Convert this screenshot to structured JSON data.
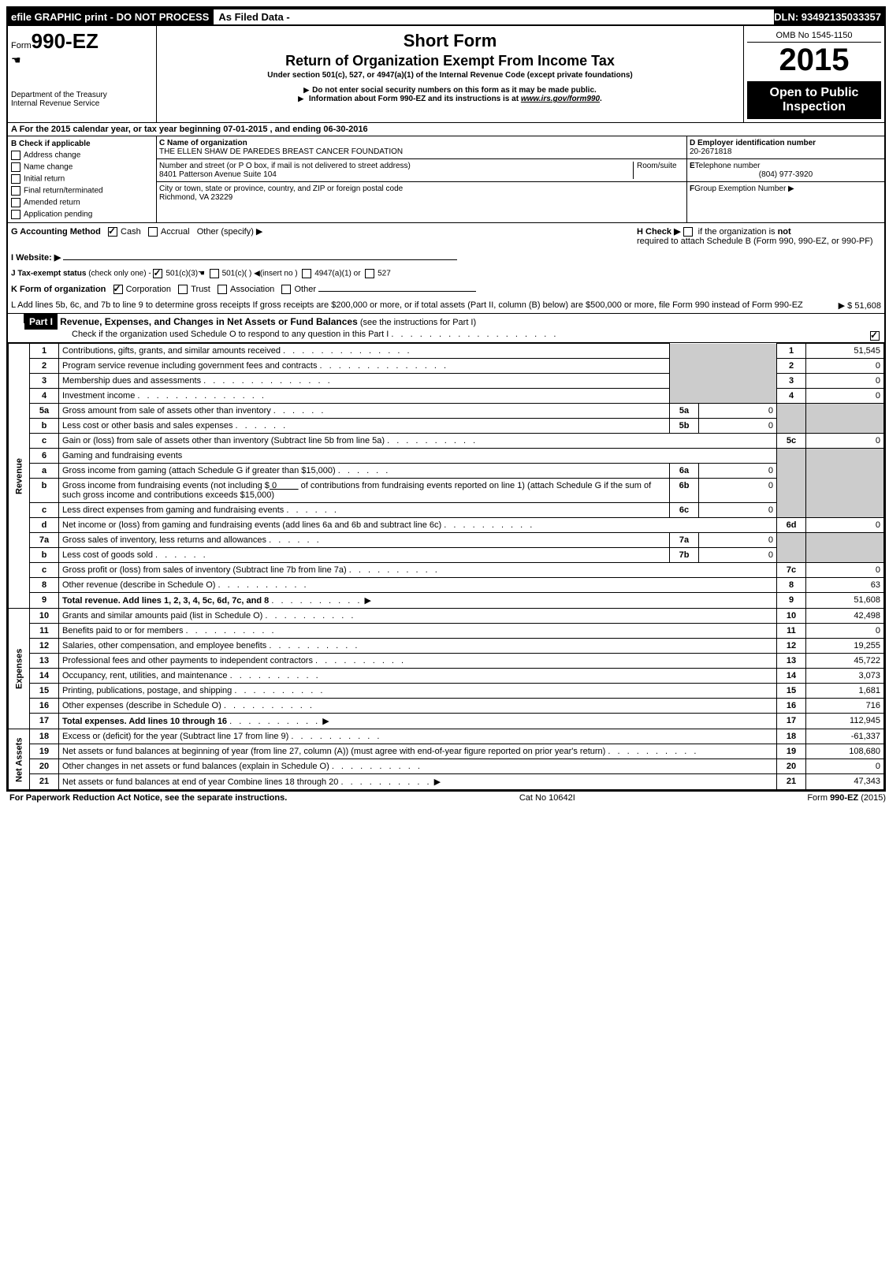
{
  "top": {
    "efile": "efile GRAPHIC print - DO NOT PROCESS",
    "asfiled": "As Filed Data -",
    "dln": "DLN: 93492135033357"
  },
  "header": {
    "form_prefix": "Form",
    "form_no": "990-EZ",
    "dept": "Department of the Treasury",
    "irs": "Internal Revenue Service",
    "short_form": "Short Form",
    "title": "Return of Organization Exempt From Income Tax",
    "under": "Under section 501(c), 527, or 4947(a)(1) of the Internal Revenue Code (except private foundations)",
    "note1": "Do not enter social security numbers on this form as it may be made public.",
    "note2_a": "Information about Form 990-EZ and its instructions is at ",
    "note2_link": "www.irs.gov/form990",
    "note2_b": ".",
    "omb": "OMB No 1545-1150",
    "year": "2015",
    "open": "Open to Public",
    "inspect": "Inspection"
  },
  "section_a": {
    "text": "A  For the 2015 calendar year, or tax year beginning 07-01-2015            , and ending 06-30-2016"
  },
  "section_b": {
    "label": "B  Check if applicable",
    "items": [
      "Address change",
      "Name change",
      "Initial return",
      "Final return/terminated",
      "Amended return",
      "Application pending"
    ]
  },
  "section_c": {
    "name_label": "C Name of organization",
    "name": "THE ELLEN SHAW DE PAREDES BREAST CANCER FOUNDATION",
    "addr_label": "Number and street (or P O box, if mail is not delivered to street address)",
    "room_label": "Room/suite",
    "addr": "8401 Patterson Avenue Suite 104",
    "city_label": "City or town, state or province, country, and ZIP or foreign postal code",
    "city": "Richmond, VA 23229"
  },
  "section_d": {
    "label": "D Employer identification number",
    "value": "20-2671818"
  },
  "section_e": {
    "label": "E",
    "text": "Telephone number",
    "value": "(804) 977-3920"
  },
  "section_f": {
    "label": "F",
    "text": "Group Exemption Number  ▶"
  },
  "section_g": {
    "label": "G Accounting Method",
    "cash": "Cash",
    "accrual": "Accrual",
    "other": "Other (specify) ▶"
  },
  "section_h": {
    "text": "H  Check ▶",
    "rest": "if the organization is",
    "not": "not",
    "rest2": "required to attach Schedule B (Form 990, 990-EZ, or 990-PF)"
  },
  "section_i": {
    "label": "I Website: ▶"
  },
  "section_j": {
    "label": "J Tax-exempt status",
    "small": "(check only one) -",
    "a": "501(c)(3)",
    "b": "501(c)( )",
    "c": "(insert no )",
    "d": "4947(a)(1) or",
    "e": "527"
  },
  "section_k": {
    "label": "K Form of organization",
    "corp": "Corporation",
    "trust": "Trust",
    "assoc": "Association",
    "other": "Other"
  },
  "section_l": {
    "text": "L Add lines 5b, 6c, and 7b to line 9 to determine gross receipts  If gross receipts are $200,000 or more, or if total assets (Part II, column (B) below) are $500,000 or more, file Form 990 instead of Form 990-EZ",
    "value": "▶ $ 51,608"
  },
  "part1": {
    "label": "Part I",
    "title": "Revenue, Expenses, and Changes in Net Assets or Fund Balances",
    "subtitle": "(see the instructions for Part I)",
    "check": "Check if the organization used Schedule O to respond to any question in this Part I"
  },
  "lines": [
    {
      "n": "1",
      "desc": "Contributions, gifts, grants, and similar amounts received",
      "rn": "1",
      "rv": "51,545"
    },
    {
      "n": "2",
      "desc": "Program service revenue including government fees and contracts",
      "rn": "2",
      "rv": "0"
    },
    {
      "n": "3",
      "desc": "Membership dues and assessments",
      "rn": "3",
      "rv": "0"
    },
    {
      "n": "4",
      "desc": "Investment income",
      "rn": "4",
      "rv": "0"
    }
  ],
  "line5a": {
    "n": "5a",
    "desc": "Gross amount from sale of assets other than inventory",
    "in": "5a",
    "iv": "0"
  },
  "line5b": {
    "n": "b",
    "desc": "Less  cost or other basis and sales expenses",
    "in": "5b",
    "iv": "0"
  },
  "line5c": {
    "n": "c",
    "desc": "Gain or (loss) from sale of assets other than inventory (Subtract line 5b from line 5a)",
    "rn": "5c",
    "rv": "0"
  },
  "line6": {
    "n": "6",
    "desc": "Gaming and fundraising events"
  },
  "line6a": {
    "n": "a",
    "desc": "Gross income from gaming (attach Schedule G if greater than $15,000)",
    "in": "6a",
    "iv": "0"
  },
  "line6b": {
    "n": "b",
    "desc1": "Gross income from fundraising events (not including $",
    "amt": "0",
    "desc2": " of contributions from fundraising events reported on line 1) (attach Schedule G if the sum of such gross income and contributions exceeds $15,000)",
    "in": "6b",
    "iv": "0"
  },
  "line6c": {
    "n": "c",
    "desc": "Less  direct expenses from gaming and fundraising events",
    "in": "6c",
    "iv": "0"
  },
  "line6d": {
    "n": "d",
    "desc": "Net income or (loss) from gaming and fundraising events (add lines 6a and 6b and subtract line 6c)",
    "rn": "6d",
    "rv": "0"
  },
  "line7a": {
    "n": "7a",
    "desc": "Gross sales of inventory, less returns and allowances",
    "in": "7a",
    "iv": "0"
  },
  "line7b": {
    "n": "b",
    "desc": "Less  cost of goods sold",
    "in": "7b",
    "iv": "0"
  },
  "line7c": {
    "n": "c",
    "desc": "Gross profit or (loss) from sales of inventory (Subtract line 7b from line 7a)",
    "rn": "7c",
    "rv": "0"
  },
  "line8": {
    "n": "8",
    "desc": "Other revenue (describe in Schedule O)",
    "rn": "8",
    "rv": "63"
  },
  "line9": {
    "n": "9",
    "desc": "Total revenue. Add lines 1, 2, 3, 4, 5c, 6d, 7c, and 8",
    "rn": "9",
    "rv": "51,608",
    "bold": true,
    "arrow": true
  },
  "expense_lines": [
    {
      "n": "10",
      "desc": "Grants and similar amounts paid (list in Schedule O)",
      "rn": "10",
      "rv": "42,498"
    },
    {
      "n": "11",
      "desc": "Benefits paid to or for members",
      "rn": "11",
      "rv": "0"
    },
    {
      "n": "12",
      "desc": "Salaries, other compensation, and employee benefits",
      "rn": "12",
      "rv": "19,255"
    },
    {
      "n": "13",
      "desc": "Professional fees and other payments to independent contractors",
      "rn": "13",
      "rv": "45,722"
    },
    {
      "n": "14",
      "desc": "Occupancy, rent, utilities, and maintenance",
      "rn": "14",
      "rv": "3,073"
    },
    {
      "n": "15",
      "desc": "Printing, publications, postage, and shipping",
      "rn": "15",
      "rv": "1,681"
    },
    {
      "n": "16",
      "desc": "Other expenses (describe in Schedule O)",
      "rn": "16",
      "rv": "716"
    },
    {
      "n": "17",
      "desc": "Total expenses. Add lines 10 through 16",
      "rn": "17",
      "rv": "112,945",
      "bold": true,
      "arrow": true
    }
  ],
  "net_lines": [
    {
      "n": "18",
      "desc": "Excess or (deficit) for the year (Subtract line 17 from line 9)",
      "rn": "18",
      "rv": "-61,337"
    },
    {
      "n": "19",
      "desc": "Net assets or fund balances at beginning of year (from line 27, column (A)) (must agree with end-of-year figure reported on prior year's return)",
      "rn": "19",
      "rv": "108,680"
    },
    {
      "n": "20",
      "desc": "Other changes in net assets or fund balances (explain in Schedule O)",
      "rn": "20",
      "rv": "0"
    },
    {
      "n": "21",
      "desc": "Net assets or fund balances at end of year  Combine lines 18 through 20",
      "rn": "21",
      "rv": "47,343",
      "arrow": true
    }
  ],
  "side_labels": {
    "revenue": "Revenue",
    "expenses": "Expenses",
    "net": "Net Assets"
  },
  "footer": {
    "left": "For Paperwork Reduction Act Notice, see the separate instructions.",
    "center": "Cat No 10642I",
    "right_a": "Form",
    "right_b": "990-EZ",
    "right_c": "(2015)"
  }
}
